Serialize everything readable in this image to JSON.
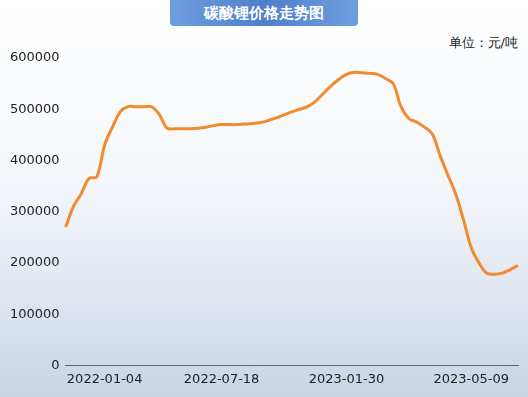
{
  "chart_data": {
    "type": "line",
    "title": "碳酸锂价格走势图",
    "ylabel": "单位：元/吨",
    "categories": [
      null,
      null,
      null,
      null,
      null,
      "2022-01-04",
      null,
      null,
      null,
      null,
      null,
      null,
      null,
      null,
      null,
      null,
      null,
      null,
      null,
      null,
      "2022-07-18",
      null,
      null,
      null,
      null,
      null,
      null,
      null,
      null,
      null,
      null,
      null,
      null,
      null,
      null,
      null,
      "2023-01-30",
      null,
      null,
      null,
      null,
      null,
      null,
      null,
      null,
      null,
      null,
      null,
      null,
      null,
      null,
      null,
      "2023-05-09",
      null,
      null,
      null,
      null,
      null,
      null
    ],
    "values": [
      270000,
      310000,
      335000,
      365000,
      368000,
      430000,
      465000,
      495000,
      505000,
      505000,
      505000,
      505000,
      490000,
      463000,
      462000,
      462000,
      462000,
      463000,
      465000,
      468000,
      470000,
      470000,
      470000,
      471000,
      472000,
      474000,
      478000,
      483000,
      489000,
      495000,
      500000,
      505000,
      515000,
      530000,
      545000,
      558000,
      568000,
      572000,
      571000,
      570000,
      568000,
      560000,
      550000,
      505000,
      482000,
      475000,
      465000,
      452000,
      410000,
      372000,
      335000,
      285000,
      230000,
      200000,
      180000,
      178000,
      180000,
      187000,
      195000
    ],
    "color": "#f28a2e",
    "ylim": [
      0,
      600000
    ],
    "yticks": [
      0,
      100000,
      200000,
      300000,
      400000,
      500000,
      600000
    ],
    "grid": false
  }
}
